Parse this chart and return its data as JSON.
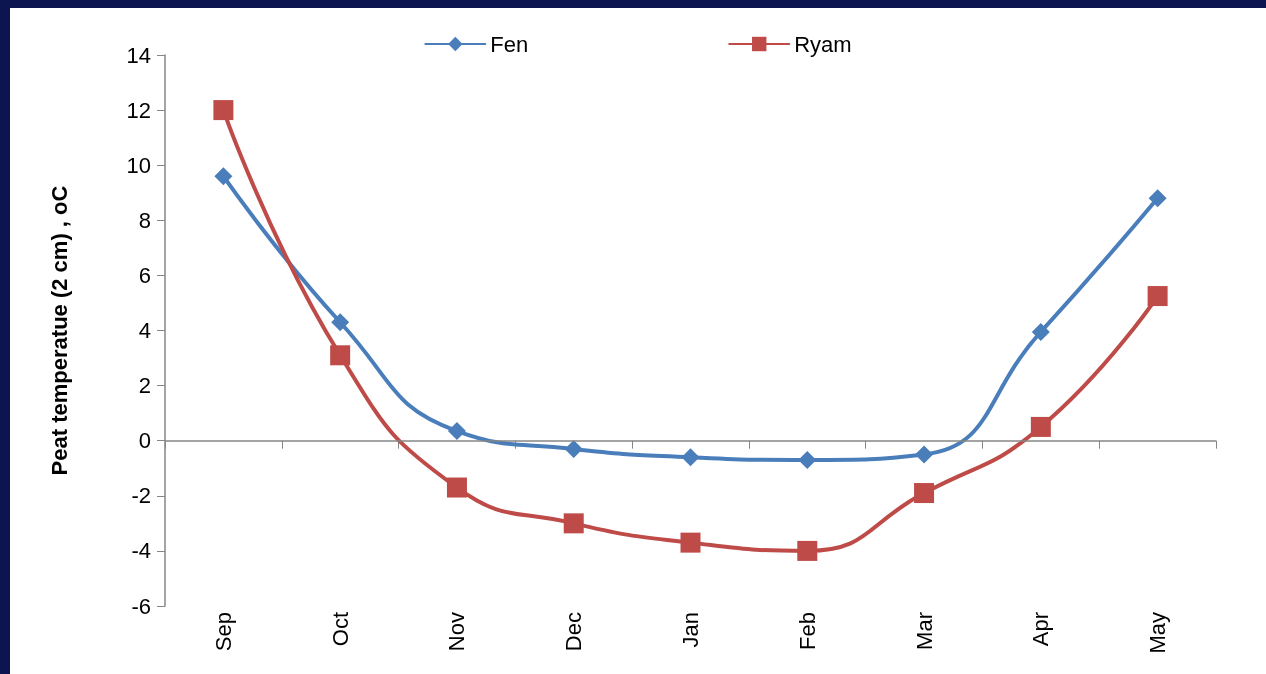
{
  "chart_data": {
    "type": "line",
    "ylabel": "Peat temperatue (2 cm) , oC",
    "categories": [
      "Sep",
      "Oct",
      "Nov",
      "Dec",
      "Jan",
      "Feb",
      "Mar",
      "Apr",
      "May"
    ],
    "series": [
      {
        "name": "Fen",
        "color": "#4a7ebb",
        "marker": "diamond",
        "values": [
          9.6,
          4.3,
          0.35,
          -0.3,
          -0.6,
          -0.7,
          -0.5,
          3.95,
          8.8
        ]
      },
      {
        "name": "Ryam",
        "color": "#be4b48",
        "marker": "square",
        "values": [
          12.0,
          3.1,
          -1.7,
          -3.0,
          -3.7,
          -4.0,
          -1.9,
          0.5,
          5.25
        ]
      }
    ],
    "ylim": [
      -6,
      14
    ],
    "yticks": [
      -6,
      -4,
      -2,
      0,
      2,
      4,
      6,
      8,
      10,
      12,
      14
    ],
    "grid": false,
    "ref_lines": [
      {
        "axis": "y",
        "value": 0,
        "color": "#868686"
      }
    ],
    "legend": "top"
  }
}
